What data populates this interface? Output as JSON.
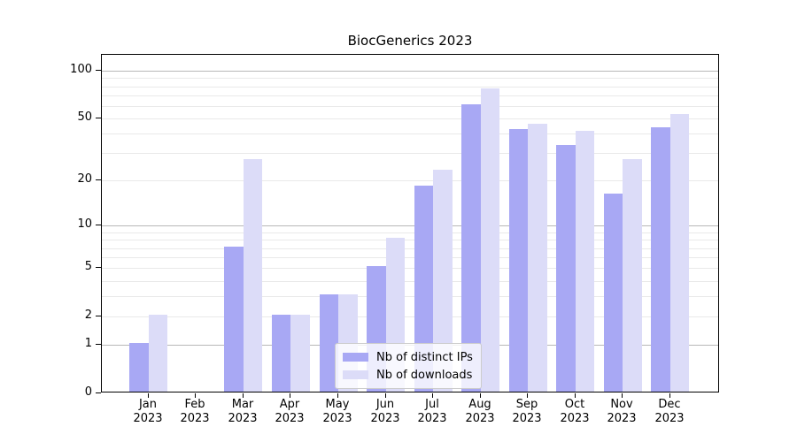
{
  "chart_data": {
    "type": "bar",
    "title": "BiocGenerics 2023",
    "categories": [
      "Jan",
      "Feb",
      "Mar",
      "Apr",
      "May",
      "Jun",
      "Jul",
      "Aug",
      "Sep",
      "Oct",
      "Nov",
      "Dec"
    ],
    "x_year": "2023",
    "series": [
      {
        "name": "Nb of distinct IPs",
        "color": "#a8a8f4",
        "values": [
          1,
          0,
          7,
          2,
          3,
          5,
          18,
          60,
          42,
          33,
          16,
          43
        ]
      },
      {
        "name": "Nb of downloads",
        "color": "#dcdcf8",
        "values": [
          2,
          0,
          27,
          2,
          3,
          8,
          23,
          76,
          45,
          41,
          27,
          52
        ]
      }
    ],
    "y_scale": "log10(1+x)",
    "y_ticks": [
      0,
      1,
      2,
      5,
      10,
      20,
      50,
      100
    ],
    "y_gridlines_major": [
      1,
      10,
      100
    ],
    "y_gridlines_minor": [
      2,
      3,
      4,
      5,
      6,
      7,
      8,
      9,
      20,
      30,
      40,
      50,
      60,
      70,
      80,
      90
    ],
    "ylim": [
      0,
      126
    ],
    "grid": true,
    "legend_position": "lower-center",
    "colors": {
      "axis": "#000000",
      "grid_major": "#b8b8b8",
      "grid_minor": "#e9e9e9",
      "background": "#ffffff"
    }
  }
}
